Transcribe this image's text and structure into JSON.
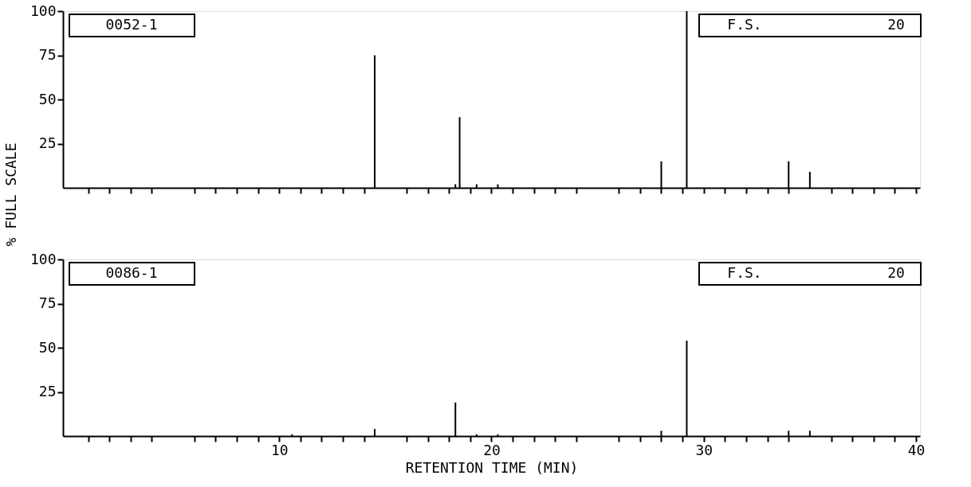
{
  "chart_data": [
    {
      "type": "bar",
      "ylabel": "% FULL SCALE",
      "annotations": [
        "0052-1",
        "F.S.",
        "20"
      ],
      "x": [
        14.5,
        18.3,
        18.5,
        19.3,
        20.3,
        28.0,
        29.2,
        34.0,
        35.0
      ],
      "values": [
        75,
        2,
        40,
        2,
        2,
        15,
        100,
        15,
        9
      ],
      "color": "#000000",
      "xlim": [
        0,
        40
      ],
      "xticks": [
        {
          "value": 1,
          "label": null
        },
        {
          "value": 2,
          "label": null
        },
        {
          "value": 3,
          "label": null
        },
        {
          "value": 4,
          "label": null
        },
        {
          "value": 6,
          "label": null
        },
        {
          "value": 7,
          "label": null
        },
        {
          "value": 8,
          "label": null
        },
        {
          "value": 9,
          "label": null
        },
        10,
        {
          "value": 11,
          "label": null
        },
        {
          "value": 12,
          "label": null
        },
        {
          "value": 13,
          "label": null
        },
        {
          "value": 14,
          "label": null
        },
        {
          "value": 16,
          "label": null
        },
        {
          "value": 17,
          "label": null
        },
        {
          "value": 18,
          "label": null
        },
        {
          "value": 19,
          "label": null
        },
        20,
        {
          "value": 21,
          "label": null
        },
        {
          "value": 22,
          "label": null
        },
        {
          "value": 23,
          "label": null
        },
        {
          "value": 24,
          "label": null
        },
        {
          "value": 26,
          "label": null
        },
        {
          "value": 27,
          "label": null
        },
        {
          "value": 28,
          "label": null
        },
        {
          "value": 29,
          "label": null
        },
        30,
        {
          "value": 31,
          "label": null
        },
        {
          "value": 32,
          "label": null
        },
        {
          "value": 33,
          "label": null
        },
        {
          "value": 34,
          "label": null
        },
        {
          "value": 36,
          "label": null
        },
        {
          "value": 37,
          "label": null
        },
        {
          "value": 38,
          "label": null
        },
        {
          "value": 39,
          "label": null
        },
        40
      ],
      "ylim": [
        0,
        100
      ],
      "yticks": [
        25,
        50,
        75,
        100
      ],
      "grid": false,
      "tick_labels": "y"
    },
    {
      "type": "bar",
      "xlabel": "RETENTION TIME (MIN)",
      "annotations": [
        "0086-1",
        "F.S.",
        "20"
      ],
      "x": [
        10.6,
        14.5,
        18.3,
        19.3,
        20.3,
        28.0,
        29.2,
        34.0,
        35.0
      ],
      "values": [
        1,
        4,
        19,
        1,
        1,
        3,
        54,
        3,
        3
      ],
      "color": "#000000",
      "xlim": [
        0,
        40
      ],
      "xticks": [
        {
          "value": 1,
          "label": null
        },
        {
          "value": 2,
          "label": null
        },
        {
          "value": 3,
          "label": null
        },
        {
          "value": 4,
          "label": null
        },
        {
          "value": 6,
          "label": null
        },
        {
          "value": 7,
          "label": null
        },
        {
          "value": 8,
          "label": null
        },
        {
          "value": 9,
          "label": null
        },
        10,
        {
          "value": 11,
          "label": null
        },
        {
          "value": 12,
          "label": null
        },
        {
          "value": 13,
          "label": null
        },
        {
          "value": 14,
          "label": null
        },
        {
          "value": 16,
          "label": null
        },
        {
          "value": 17,
          "label": null
        },
        {
          "value": 18,
          "label": null
        },
        {
          "value": 19,
          "label": null
        },
        20,
        {
          "value": 21,
          "label": null
        },
        {
          "value": 22,
          "label": null
        },
        {
          "value": 23,
          "label": null
        },
        {
          "value": 24,
          "label": null
        },
        {
          "value": 26,
          "label": null
        },
        {
          "value": 27,
          "label": null
        },
        {
          "value": 28,
          "label": null
        },
        {
          "value": 29,
          "label": null
        },
        30,
        {
          "value": 31,
          "label": null
        },
        {
          "value": 32,
          "label": null
        },
        {
          "value": 33,
          "label": null
        },
        {
          "value": 34,
          "label": null
        },
        {
          "value": 36,
          "label": null
        },
        {
          "value": 37,
          "label": null
        },
        {
          "value": 38,
          "label": null
        },
        {
          "value": 39,
          "label": null
        },
        40
      ],
      "ylim": [
        0,
        100
      ],
      "yticks": [
        25,
        50,
        75,
        100
      ],
      "grid": false
    }
  ]
}
